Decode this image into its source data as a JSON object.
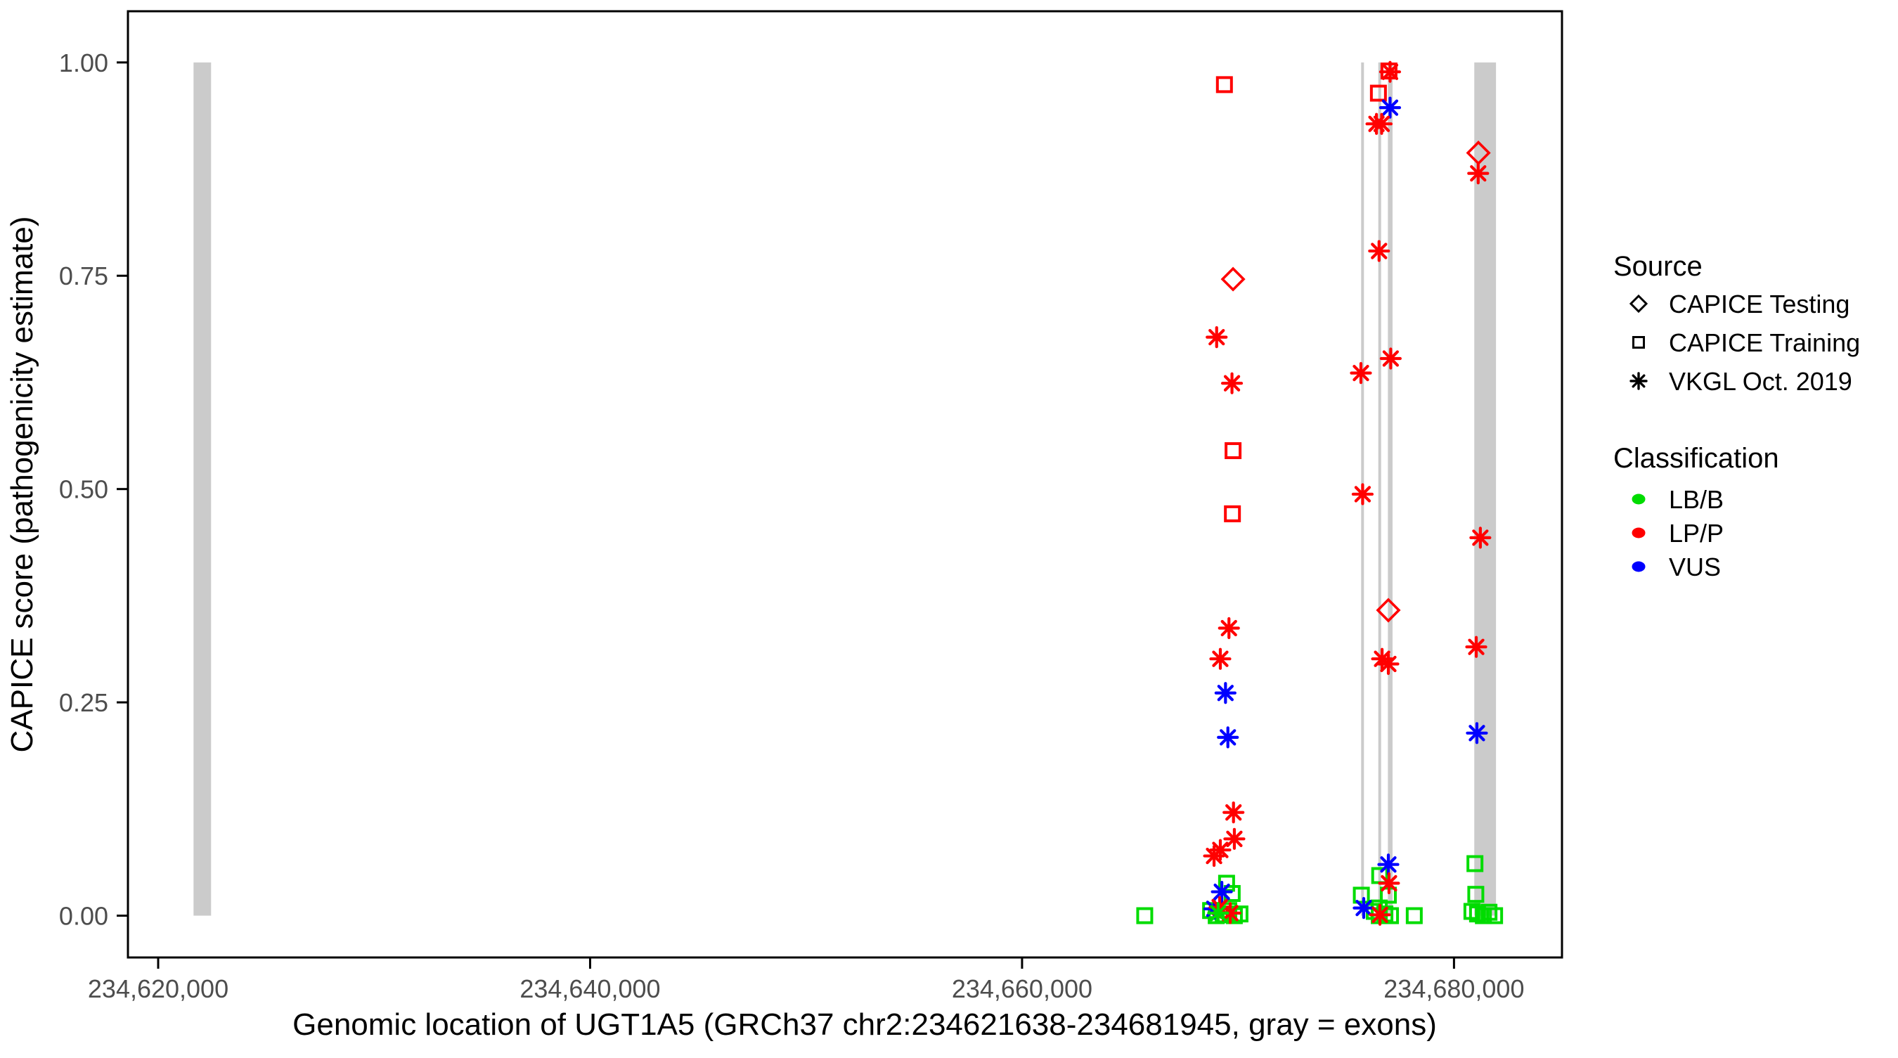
{
  "colors": {
    "exon": "#CBCBCB",
    "axis": "#000000",
    "tick_text": "#4D4D4D",
    "background": "#FFFFFF"
  },
  "color_by_classification": {
    "LB/B": "#00DC00",
    "LP/P": "#FF0000",
    "VUS": "#0000FF"
  },
  "marker_by_source": {
    "CAPICE Testing": "diamond",
    "CAPICE Training": "square",
    "VKGL Oct. 2019": "asterisk"
  },
  "legend": {
    "source": {
      "title": "Source",
      "items": [
        {
          "label": "CAPICE Testing",
          "marker": "diamond"
        },
        {
          "label": "CAPICE Training",
          "marker": "square"
        },
        {
          "label": "VKGL Oct. 2019",
          "marker": "asterisk"
        }
      ]
    },
    "classification": {
      "title": "Classification",
      "items": [
        {
          "label": "LB/B",
          "color": "#00DC00"
        },
        {
          "label": "LP/P",
          "color": "#FF0000"
        },
        {
          "label": "VUS",
          "color": "#0000FF"
        }
      ]
    }
  },
  "chart_data": {
    "type": "scatter",
    "title": "",
    "xlabel": "Genomic location of UGT1A5 (GRCh37 chr2:234621638-234681945, gray = exons)",
    "ylabel": "CAPICE score (pathogenicity estimate)",
    "grid": false,
    "legend_position": "right",
    "x_axis": {
      "min": 234618600,
      "max": 234685000,
      "ticks": [
        234620000,
        234640000,
        234660000,
        234680000
      ],
      "tick_labels": [
        "234,620,000",
        "234,640,000",
        "234,660,000",
        "234,680,000"
      ]
    },
    "y_axis": {
      "min": -0.049,
      "max": 1.06,
      "ticks": [
        0,
        0.25,
        0.5,
        0.75,
        1.0
      ],
      "tick_labels": [
        "0.00",
        "0.25",
        "0.50",
        "0.75",
        "1.00"
      ]
    },
    "exons": [
      {
        "start": 234621638,
        "end": 234622450
      },
      {
        "start": 234675700,
        "end": 234675830
      },
      {
        "start": 234676495,
        "end": 234676625
      },
      {
        "start": 234676940,
        "end": 234677155
      },
      {
        "start": 234680940,
        "end": 234681945
      }
    ],
    "points": [
      {
        "loc": 234669370,
        "score": 0.974,
        "source": "CAPICE Training",
        "classification": "LP/P"
      },
      {
        "loc": 234669770,
        "score": 0.746,
        "source": "CAPICE Testing",
        "classification": "LP/P"
      },
      {
        "loc": 234669010,
        "score": 0.678,
        "source": "VKGL Oct. 2019",
        "classification": "LP/P"
      },
      {
        "loc": 234669720,
        "score": 0.624,
        "source": "VKGL Oct. 2019",
        "classification": "LP/P"
      },
      {
        "loc": 234669770,
        "score": 0.545,
        "source": "CAPICE Training",
        "classification": "LP/P"
      },
      {
        "loc": 234669740,
        "score": 0.471,
        "source": "CAPICE Training",
        "classification": "LP/P"
      },
      {
        "loc": 234669580,
        "score": 0.337,
        "source": "VKGL Oct. 2019",
        "classification": "LP/P"
      },
      {
        "loc": 234669180,
        "score": 0.301,
        "source": "VKGL Oct. 2019",
        "classification": "LP/P"
      },
      {
        "loc": 234669420,
        "score": 0.261,
        "source": "VKGL Oct. 2019",
        "classification": "VUS"
      },
      {
        "loc": 234669530,
        "score": 0.209,
        "source": "VKGL Oct. 2019",
        "classification": "VUS"
      },
      {
        "loc": 234669790,
        "score": 0.121,
        "source": "VKGL Oct. 2019",
        "classification": "LP/P"
      },
      {
        "loc": 234669830,
        "score": 0.09,
        "source": "VKGL Oct. 2019",
        "classification": "LP/P"
      },
      {
        "loc": 234669180,
        "score": 0.077,
        "source": "VKGL Oct. 2019",
        "classification": "LP/P"
      },
      {
        "loc": 234668890,
        "score": 0.07,
        "source": "VKGL Oct. 2019",
        "classification": "LP/P"
      },
      {
        "loc": 234669470,
        "score": 0.038,
        "source": "CAPICE Training",
        "classification": "LB/B"
      },
      {
        "loc": 234669250,
        "score": 0.028,
        "source": "VKGL Oct. 2019",
        "classification": "VUS"
      },
      {
        "loc": 234669730,
        "score": 0.026,
        "source": "CAPICE Training",
        "classification": "LB/B"
      },
      {
        "loc": 234668900,
        "score": 0.008,
        "source": "VKGL Oct. 2019",
        "classification": "VUS"
      },
      {
        "loc": 234669150,
        "score": 0.01,
        "source": "VKGL Oct. 2019",
        "classification": "LP/P"
      },
      {
        "loc": 234669640,
        "score": 0.003,
        "source": "VKGL Oct. 2019",
        "classification": "LP/P"
      },
      {
        "loc": 234668730,
        "score": 0.006,
        "source": "CAPICE Training",
        "classification": "LB/B"
      },
      {
        "loc": 234668990,
        "score": 0.0,
        "source": "CAPICE Training",
        "classification": "LB/B"
      },
      {
        "loc": 234669310,
        "score": 0.001,
        "source": "CAPICE Training",
        "classification": "LB/B"
      },
      {
        "loc": 234669570,
        "score": 0.006,
        "source": "CAPICE Training",
        "classification": "LB/B"
      },
      {
        "loc": 234669830,
        "score": 0.0,
        "source": "CAPICE Training",
        "classification": "LB/B"
      },
      {
        "loc": 234670090,
        "score": 0.002,
        "source": "CAPICE Training",
        "classification": "LB/B"
      },
      {
        "loc": 234669080,
        "score": 0.003,
        "source": "VKGL Oct. 2019",
        "classification": "LB/B"
      },
      {
        "loc": 234665680,
        "score": 0.0,
        "source": "CAPICE Training",
        "classification": "LB/B"
      },
      {
        "loc": 234676990,
        "score": 0.99,
        "source": "CAPICE Training",
        "classification": "LP/P"
      },
      {
        "loc": 234677040,
        "score": 0.989,
        "source": "VKGL Oct. 2019",
        "classification": "LP/P"
      },
      {
        "loc": 234676500,
        "score": 0.964,
        "source": "CAPICE Training",
        "classification": "LP/P"
      },
      {
        "loc": 234677040,
        "score": 0.947,
        "source": "VKGL Oct. 2019",
        "classification": "VUS"
      },
      {
        "loc": 234676410,
        "score": 0.928,
        "source": "VKGL Oct. 2019",
        "classification": "LP/P"
      },
      {
        "loc": 234676650,
        "score": 0.928,
        "source": "VKGL Oct. 2019",
        "classification": "LP/P"
      },
      {
        "loc": 234676530,
        "score": 0.779,
        "source": "VKGL Oct. 2019",
        "classification": "LP/P"
      },
      {
        "loc": 234677070,
        "score": 0.653,
        "source": "VKGL Oct. 2019",
        "classification": "LP/P"
      },
      {
        "loc": 234675690,
        "score": 0.636,
        "source": "VKGL Oct. 2019",
        "classification": "LP/P"
      },
      {
        "loc": 234675770,
        "score": 0.494,
        "source": "VKGL Oct. 2019",
        "classification": "LP/P"
      },
      {
        "loc": 234676960,
        "score": 0.358,
        "source": "CAPICE Testing",
        "classification": "LP/P"
      },
      {
        "loc": 234676670,
        "score": 0.301,
        "source": "VKGL Oct. 2019",
        "classification": "LP/P"
      },
      {
        "loc": 234676960,
        "score": 0.295,
        "source": "VKGL Oct. 2019",
        "classification": "LP/P"
      },
      {
        "loc": 234676960,
        "score": 0.06,
        "source": "VKGL Oct. 2019",
        "classification": "VUS"
      },
      {
        "loc": 234676560,
        "score": 0.047,
        "source": "CAPICE Training",
        "classification": "LB/B"
      },
      {
        "loc": 234676990,
        "score": 0.038,
        "source": "VKGL Oct. 2019",
        "classification": "LP/P"
      },
      {
        "loc": 234676960,
        "score": 0.024,
        "source": "CAPICE Training",
        "classification": "LB/B"
      },
      {
        "loc": 234675710,
        "score": 0.024,
        "source": "CAPICE Training",
        "classification": "LB/B"
      },
      {
        "loc": 234675820,
        "score": 0.009,
        "source": "VKGL Oct. 2019",
        "classification": "VUS"
      },
      {
        "loc": 234676310,
        "score": 0.005,
        "source": "CAPICE Training",
        "classification": "LB/B"
      },
      {
        "loc": 234676540,
        "score": 0.0,
        "source": "CAPICE Training",
        "classification": "LB/B"
      },
      {
        "loc": 234676800,
        "score": 0.002,
        "source": "CAPICE Training",
        "classification": "LB/B"
      },
      {
        "loc": 234677060,
        "score": 0.0,
        "source": "CAPICE Training",
        "classification": "LB/B"
      },
      {
        "loc": 234676540,
        "score": 0.009,
        "source": "CAPICE Training",
        "classification": "LB/B"
      },
      {
        "loc": 234676570,
        "score": 0.001,
        "source": "VKGL Oct. 2019",
        "classification": "LP/P"
      },
      {
        "loc": 234678160,
        "score": 0.0,
        "source": "CAPICE Training",
        "classification": "LB/B"
      },
      {
        "loc": 234681130,
        "score": 0.894,
        "source": "CAPICE Testing",
        "classification": "LP/P"
      },
      {
        "loc": 234681120,
        "score": 0.87,
        "source": "VKGL Oct. 2019",
        "classification": "LP/P"
      },
      {
        "loc": 234681220,
        "score": 0.443,
        "source": "VKGL Oct. 2019",
        "classification": "LP/P"
      },
      {
        "loc": 234681030,
        "score": 0.315,
        "source": "VKGL Oct. 2019",
        "classification": "LP/P"
      },
      {
        "loc": 234681060,
        "score": 0.214,
        "source": "VKGL Oct. 2019",
        "classification": "VUS"
      },
      {
        "loc": 234680970,
        "score": 0.061,
        "source": "CAPICE Training",
        "classification": "LB/B"
      },
      {
        "loc": 234681010,
        "score": 0.025,
        "source": "CAPICE Training",
        "classification": "LB/B"
      },
      {
        "loc": 234680830,
        "score": 0.005,
        "source": "CAPICE Training",
        "classification": "LB/B"
      },
      {
        "loc": 234681090,
        "score": 0.002,
        "source": "CAPICE Training",
        "classification": "LB/B"
      },
      {
        "loc": 234681360,
        "score": 0.0,
        "source": "CAPICE Training",
        "classification": "LB/B"
      },
      {
        "loc": 234681620,
        "score": 0.004,
        "source": "CAPICE Training",
        "classification": "LB/B"
      },
      {
        "loc": 234681880,
        "score": 0.0,
        "source": "CAPICE Training",
        "classification": "LB/B"
      }
    ]
  }
}
